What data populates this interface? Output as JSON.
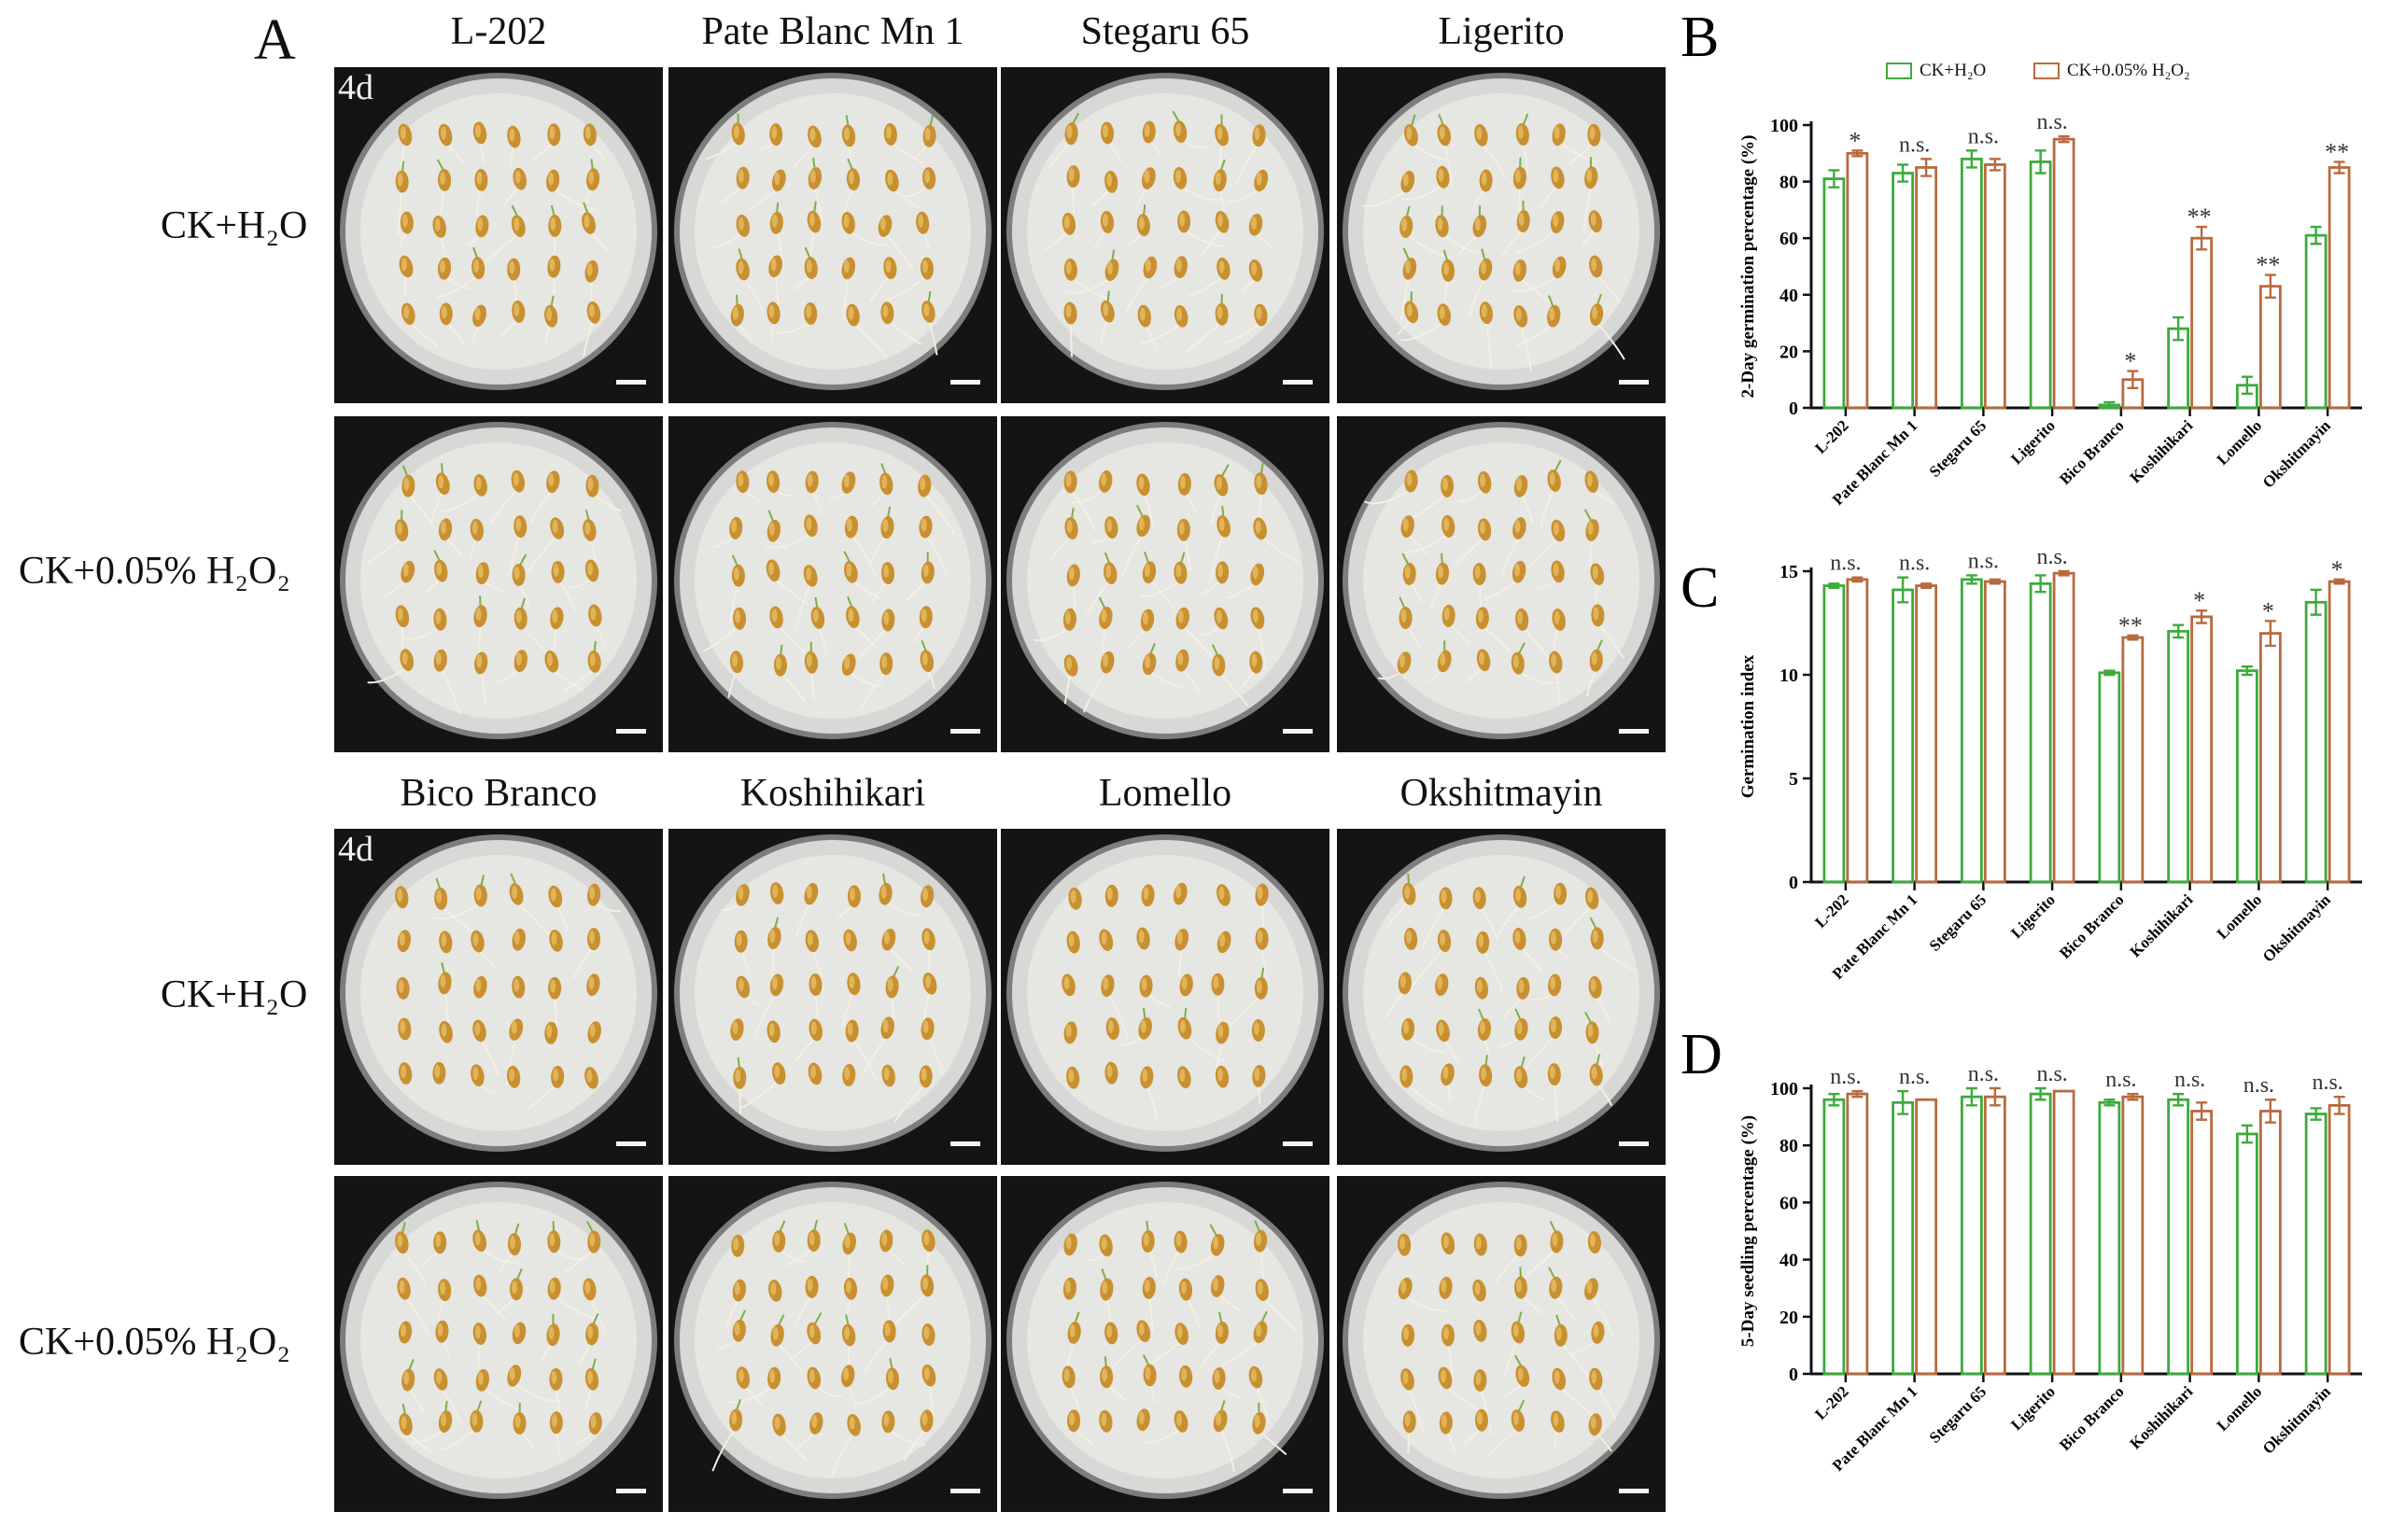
{
  "panel_a": {
    "letter": "A",
    "day_label": "4d",
    "rows": [
      {
        "label": "CK+H₂O",
        "treatment": "CK+H2O"
      },
      {
        "label": "CK+0.05% H₂O₂",
        "treatment": "CK+0.05% H2O2"
      }
    ],
    "groups": [
      {
        "varieties": [
          "L-202",
          "Pate Blanc Mn 1",
          "Stegaru 65",
          "Ligerito"
        ]
      },
      {
        "varieties": [
          "Bico Branco",
          "Koshihikari",
          "Lomello",
          "Okshitmayin"
        ]
      }
    ]
  },
  "legend": {
    "items": [
      {
        "label": "CK+H₂O",
        "color": "#3cab3c"
      },
      {
        "label": "CK+0.05% H₂O₂",
        "color": "#b86a3f"
      }
    ]
  },
  "chart_data": [
    {
      "panel": "B",
      "type": "bar",
      "ylabel": "2-Day germination percentage (%)",
      "ylim": [
        0,
        100
      ],
      "yticks": [
        0,
        20,
        40,
        60,
        80,
        100
      ],
      "categories": [
        "L-202",
        "Pate Blanc Mn 1",
        "Stegaru 65",
        "Ligerito",
        "Bico Branco",
        "Koshihikari",
        "Lomello",
        "Okshitmayin"
      ],
      "series": [
        {
          "name": "CK+H₂O",
          "values": [
            81,
            83,
            88,
            87,
            1,
            28,
            8,
            61
          ],
          "errors": [
            3,
            3,
            3,
            4,
            1,
            4,
            3,
            3
          ]
        },
        {
          "name": "CK+0.05% H₂O₂",
          "values": [
            90,
            85,
            86,
            95,
            10,
            60,
            43,
            85
          ],
          "errors": [
            1,
            3,
            2,
            1,
            3,
            4,
            4,
            2
          ]
        }
      ],
      "significance": [
        "*",
        "n.s.",
        "n.s.",
        "n.s.",
        "*",
        "**",
        "**",
        "**"
      ]
    },
    {
      "panel": "C",
      "type": "bar",
      "ylabel": "Germination index",
      "ylim": [
        0,
        15
      ],
      "yticks": [
        0,
        5,
        10,
        15
      ],
      "categories": [
        "L-202",
        "Pate Blanc Mn 1",
        "Stegaru 65",
        "Ligerito",
        "Bico Branco",
        "Koshihikari",
        "Lomello",
        "Okshitmayin"
      ],
      "series": [
        {
          "name": "CK+H₂O",
          "values": [
            14.3,
            14.1,
            14.6,
            14.4,
            10.1,
            12.1,
            10.2,
            13.5
          ],
          "errors": [
            0.1,
            0.6,
            0.2,
            0.4,
            0.1,
            0.3,
            0.2,
            0.6
          ]
        },
        {
          "name": "CK+0.05% H₂O₂",
          "values": [
            14.6,
            14.3,
            14.5,
            14.9,
            11.8,
            12.8,
            12.0,
            14.5
          ],
          "errors": [
            0.1,
            0.1,
            0.1,
            0.1,
            0.1,
            0.3,
            0.6,
            0.1
          ]
        }
      ],
      "significance": [
        "n.s.",
        "n.s.",
        "n.s.",
        "n.s.",
        "**",
        "*",
        "*",
        "*"
      ]
    },
    {
      "panel": "D",
      "type": "bar",
      "ylabel": "5-Day seedling percentage (%)",
      "ylim": [
        0,
        100
      ],
      "yticks": [
        0,
        20,
        40,
        60,
        80,
        100
      ],
      "categories": [
        "L-202",
        "Pate Blanc Mn 1",
        "Stegaru 65",
        "Ligerito",
        "Bico Branco",
        "Koshihikari",
        "Lomello",
        "Okshitmayin"
      ],
      "series": [
        {
          "name": "CK+H₂O",
          "values": [
            96,
            95,
            97,
            98,
            95,
            96,
            84,
            91
          ],
          "errors": [
            2,
            4,
            3,
            2,
            1,
            2,
            3,
            2
          ]
        },
        {
          "name": "CK+0.05% H₂O₂",
          "values": [
            98,
            96,
            97,
            99,
            97,
            92,
            92,
            94
          ],
          "errors": [
            1,
            0,
            3,
            0,
            1,
            3,
            4,
            3
          ]
        }
      ],
      "significance": [
        "n.s.",
        "n.s.",
        "n.s.",
        "n.s.",
        "n.s.",
        "n.s.",
        "n.s.",
        "n.s."
      ]
    }
  ]
}
